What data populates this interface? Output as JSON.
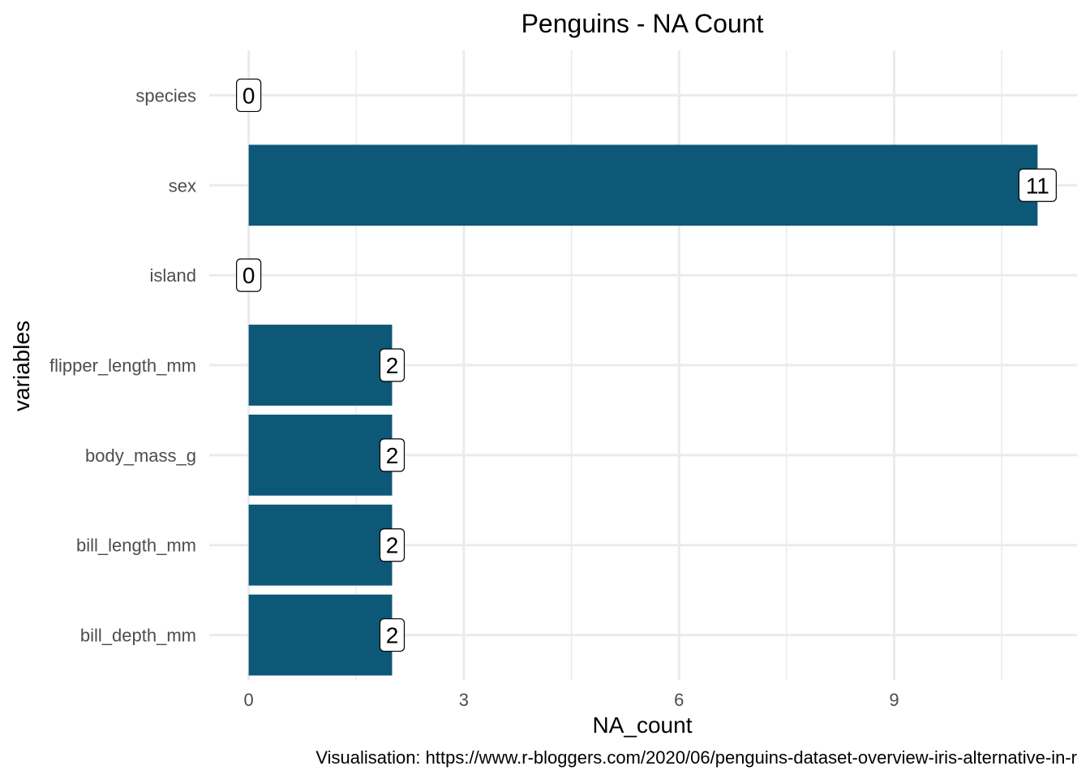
{
  "chart_data": {
    "type": "bar",
    "orientation": "horizontal",
    "title": "Penguins - NA Count",
    "xlabel": "NA_count",
    "ylabel": "variables",
    "caption": "Visualisation: https://www.r-bloggers.com/2020/06/penguins-dataset-overview-iris-alternative-in-r",
    "categories": [
      "species",
      "sex",
      "island",
      "flipper_length_mm",
      "body_mass_g",
      "bill_length_mm",
      "bill_depth_mm"
    ],
    "values": [
      0,
      11,
      0,
      2,
      2,
      2,
      2
    ],
    "data_labels": [
      "0",
      "11",
      "0",
      "2",
      "2",
      "2",
      "2"
    ],
    "x_ticks": [
      0,
      3,
      6,
      9
    ],
    "x_tick_labels": [
      "0",
      "3",
      "6",
      "9"
    ],
    "xlim": [
      -0.55,
      11.55
    ],
    "grid": true,
    "bar_color": "#0d5777"
  }
}
